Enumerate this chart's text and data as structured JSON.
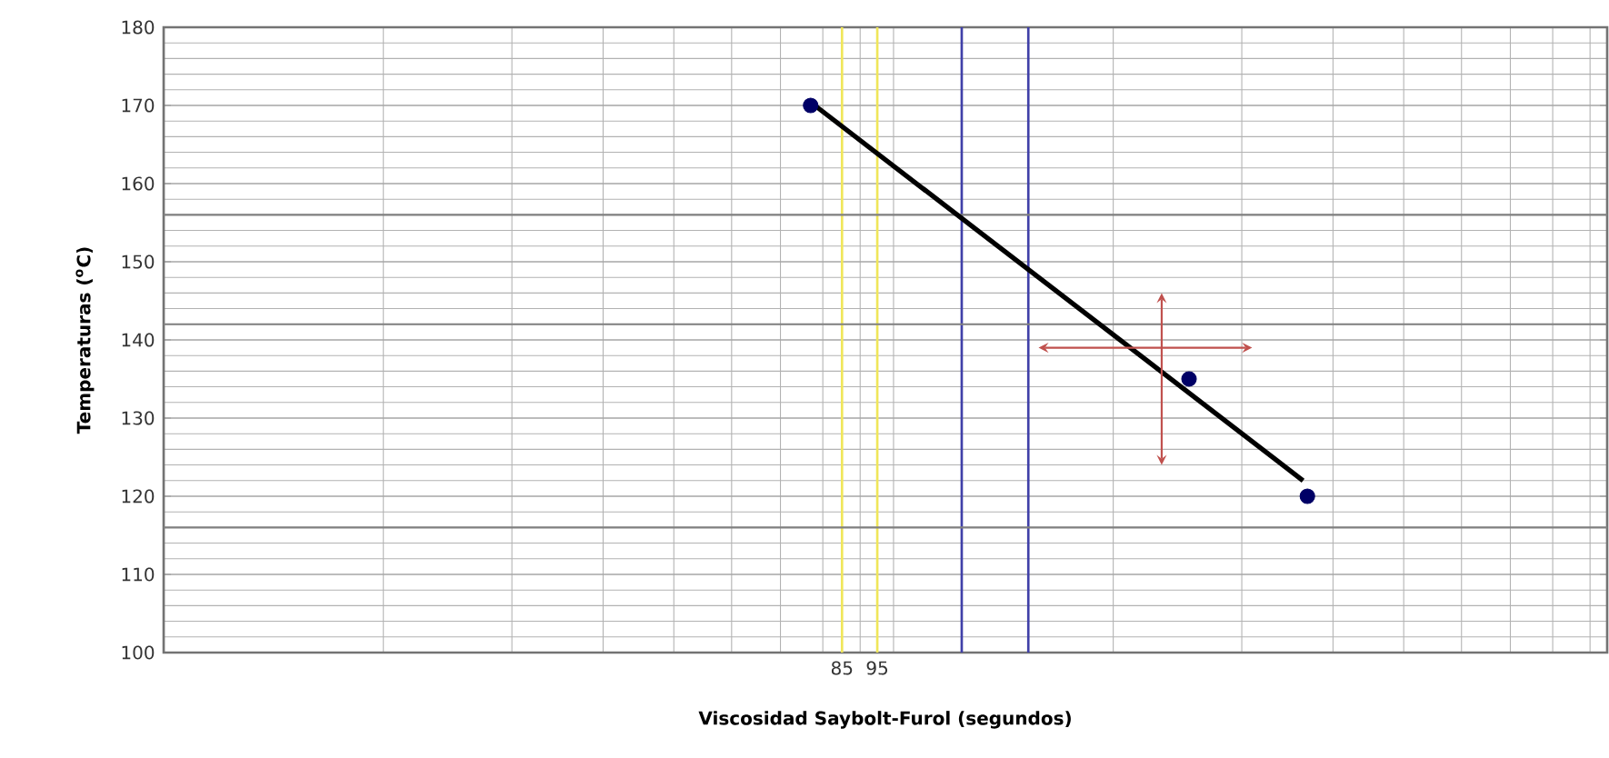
{
  "chart_data": {
    "type": "scatter",
    "xlabel": "Viscosidad Saybolt-Furol (segundos)",
    "ylabel": "Temperaturas ($^{o}$C)",
    "log": "x",
    "xlim": [
      10,
      950
    ],
    "xticks": [
      85,
      95
    ],
    "ylim": [
      100,
      180
    ],
    "yticks": [
      100,
      110,
      120,
      130,
      140,
      150,
      160,
      170,
      180
    ],
    "grid": true,
    "ref_lines": [
      {
        "axis": "x",
        "value": 85,
        "color": "#f0e65a"
      },
      {
        "axis": "x",
        "value": 95,
        "color": "#f0e65a"
      },
      {
        "axis": "x",
        "value": 124,
        "color": "#4040a8"
      },
      {
        "axis": "x",
        "value": 153,
        "color": "#4040a8"
      },
      {
        "axis": "y",
        "value": 116,
        "color": "#808080"
      },
      {
        "axis": "y",
        "value": 142,
        "color": "#808080"
      },
      {
        "axis": "y",
        "value": 156,
        "color": "#808080"
      }
    ],
    "series": [
      {
        "type": "line",
        "color": "#000000",
        "marker": "none",
        "line_style": "solid",
        "x": [
          78,
          364
        ],
        "values": [
          170,
          122
        ]
      },
      {
        "color": "#000066",
        "marker": "circle",
        "x": [
          77,
          254,
          369
        ],
        "values": [
          170,
          135,
          120
        ]
      }
    ]
  }
}
